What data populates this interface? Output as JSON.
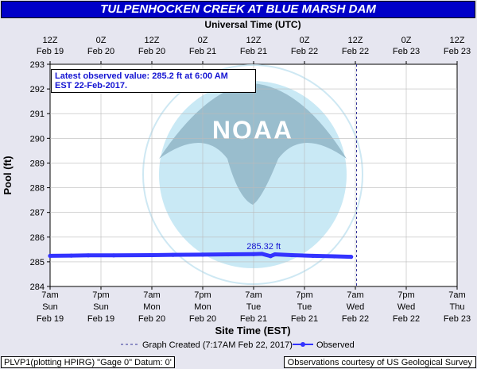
{
  "header": {
    "title": "TULPENHOCKEN CREEK AT BLUE MARSH DAM"
  },
  "top_axis": {
    "title": "Universal Time (UTC)",
    "ticks": [
      {
        "hour": "12Z",
        "date": "Feb 19"
      },
      {
        "hour": "0Z",
        "date": "Feb 20"
      },
      {
        "hour": "12Z",
        "date": "Feb 20"
      },
      {
        "hour": "0Z",
        "date": "Feb 21"
      },
      {
        "hour": "12Z",
        "date": "Feb 21"
      },
      {
        "hour": "0Z",
        "date": "Feb 22"
      },
      {
        "hour": "12Z",
        "date": "Feb 22"
      },
      {
        "hour": "0Z",
        "date": "Feb 23"
      },
      {
        "hour": "12Z",
        "date": "Feb 23"
      }
    ]
  },
  "latest": {
    "line1": "Latest observed value: 285.2 ft at 6:00 AM",
    "line2": "EST 22-Feb-2017."
  },
  "footer": {
    "left": "PLVP1(plotting HPIRG) \"Gage 0\" Datum: 0'",
    "right": "Observations courtesy of US Geological Survey"
  },
  "chart_data": {
    "type": "line",
    "title": "TULPENHOCKEN CREEK AT BLUE MARSH DAM",
    "xlabel": "Site Time (EST)",
    "ylabel": "Pool (ft)",
    "ylim": [
      284,
      293
    ],
    "yticks": [
      284,
      285,
      286,
      287,
      288,
      289,
      290,
      291,
      292,
      293
    ],
    "xlim": [
      "2017-02-19 07:00",
      "2017-02-23 07:00"
    ],
    "xticks": [
      {
        "t": "2017-02-19 07:00",
        "time": "7am",
        "day": "Sun",
        "date": "Feb 19"
      },
      {
        "t": "2017-02-19 19:00",
        "time": "7pm",
        "day": "Sun",
        "date": "Feb 19"
      },
      {
        "t": "2017-02-20 07:00",
        "time": "7am",
        "day": "Mon",
        "date": "Feb 20"
      },
      {
        "t": "2017-02-20 19:00",
        "time": "7pm",
        "day": "Mon",
        "date": "Feb 20"
      },
      {
        "t": "2017-02-21 07:00",
        "time": "7am",
        "day": "Tue",
        "date": "Feb 21"
      },
      {
        "t": "2017-02-21 19:00",
        "time": "7pm",
        "day": "Tue",
        "date": "Feb 21"
      },
      {
        "t": "2017-02-22 07:00",
        "time": "7am",
        "day": "Wed",
        "date": "Feb 22"
      },
      {
        "t": "2017-02-22 19:00",
        "time": "7pm",
        "day": "Wed",
        "date": "Feb 22"
      },
      {
        "t": "2017-02-23 07:00",
        "time": "7am",
        "day": "Thu",
        "date": "Feb 23"
      }
    ],
    "grid": true,
    "graph_created": {
      "t": "2017-02-22 07:17",
      "label": "Graph Created (7:17AM Feb 22, 2017)"
    },
    "annotations": [
      {
        "t": "2017-02-21 07:30",
        "y": 285.32,
        "text": "285.32 ft"
      }
    ],
    "legend": {
      "placement": "bottom",
      "entries": [
        "Graph Created (7:17AM Feb 22, 2017)",
        "Observed"
      ]
    },
    "series": [
      {
        "name": "Observed",
        "color": "#3333ff",
        "points": [
          {
            "t": "2017-02-19 07:00",
            "y": 285.24
          },
          {
            "t": "2017-02-19 12:00",
            "y": 285.25
          },
          {
            "t": "2017-02-19 16:00",
            "y": 285.26
          },
          {
            "t": "2017-02-19 22:00",
            "y": 285.26
          },
          {
            "t": "2017-02-20 07:00",
            "y": 285.27
          },
          {
            "t": "2017-02-20 12:00",
            "y": 285.28
          },
          {
            "t": "2017-02-20 19:00",
            "y": 285.29
          },
          {
            "t": "2017-02-21 01:00",
            "y": 285.3
          },
          {
            "t": "2017-02-21 07:00",
            "y": 285.31
          },
          {
            "t": "2017-02-21 09:00",
            "y": 285.32
          },
          {
            "t": "2017-02-21 11:00",
            "y": 285.23
          },
          {
            "t": "2017-02-21 12:00",
            "y": 285.3
          },
          {
            "t": "2017-02-21 16:00",
            "y": 285.27
          },
          {
            "t": "2017-02-21 21:00",
            "y": 285.24
          },
          {
            "t": "2017-02-22 02:00",
            "y": 285.22
          },
          {
            "t": "2017-02-22 06:00",
            "y": 285.2
          }
        ]
      }
    ]
  },
  "colors": {
    "plot_bg": "#ffffff",
    "series": "#3333ff",
    "watermark": "#c4e7f5",
    "title_bg": "#0000c8"
  }
}
